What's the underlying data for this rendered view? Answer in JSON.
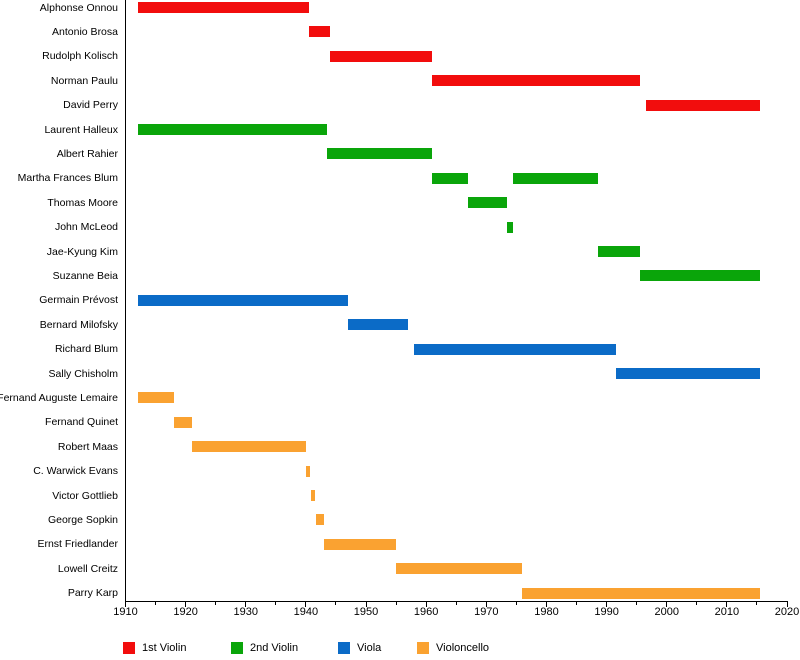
{
  "chart_data": {
    "type": "bar",
    "variant": "timeline-gantt",
    "title": "",
    "xlabel": "",
    "ylabel": "",
    "grid": false,
    "background_color": "#ffffff",
    "axis_color": "#000000",
    "x_axis": {
      "min": 1910,
      "max": 2020,
      "major_tick_step": 10,
      "minor_tick_step": 5,
      "tick_labels": [
        "1910",
        "1920",
        "1930",
        "1940",
        "1950",
        "1960",
        "1970",
        "1980",
        "1990",
        "2000",
        "2010",
        "2020"
      ]
    },
    "legend": {
      "position": "bottom",
      "items": [
        {
          "label": "1st Violin",
          "color": "#f20d0d"
        },
        {
          "label": "2nd Violin",
          "color": "#0aa50a"
        },
        {
          "label": "Viola",
          "color": "#0b6bc7"
        },
        {
          "label": "Violoncello",
          "color": "#faa231"
        }
      ]
    },
    "rows": [
      {
        "name": "Alphonse Onnou",
        "instrument": "1st Violin",
        "bars": [
          [
            1912,
            1940.5
          ]
        ]
      },
      {
        "name": "Antonio Brosa",
        "instrument": "1st Violin",
        "bars": [
          [
            1940.5,
            1944
          ]
        ]
      },
      {
        "name": "Rudolph Kolisch",
        "instrument": "1st Violin",
        "bars": [
          [
            1944,
            1961
          ]
        ]
      },
      {
        "name": "Norman Paulu",
        "instrument": "1st Violin",
        "bars": [
          [
            1961,
            1995.5
          ]
        ]
      },
      {
        "name": "David Perry",
        "instrument": "1st Violin",
        "bars": [
          [
            1996.5,
            2015.5
          ]
        ]
      },
      {
        "name": "Laurent Halleux",
        "instrument": "2nd Violin",
        "bars": [
          [
            1912,
            1943.5
          ]
        ]
      },
      {
        "name": "Albert Rahier",
        "instrument": "2nd Violin",
        "bars": [
          [
            1943.5,
            1961
          ]
        ]
      },
      {
        "name": "Martha Frances Blum",
        "instrument": "2nd Violin",
        "bars": [
          [
            1961,
            1967
          ],
          [
            1974.5,
            1988.5
          ]
        ]
      },
      {
        "name": "Thomas Moore",
        "instrument": "2nd Violin",
        "bars": [
          [
            1967,
            1973.5
          ]
        ]
      },
      {
        "name": "John McLeod",
        "instrument": "2nd Violin",
        "bars": [
          [
            1973.5,
            1974.5
          ]
        ]
      },
      {
        "name": "Jae-Kyung Kim",
        "instrument": "2nd Violin",
        "bars": [
          [
            1988.5,
            1995.5
          ]
        ]
      },
      {
        "name": "Suzanne Beia",
        "instrument": "2nd Violin",
        "bars": [
          [
            1995.5,
            2015.5
          ]
        ]
      },
      {
        "name": "Germain Prévost",
        "instrument": "Viola",
        "bars": [
          [
            1912,
            1947
          ]
        ]
      },
      {
        "name": "Bernard Milofsky",
        "instrument": "Viola",
        "bars": [
          [
            1947,
            1957
          ]
        ]
      },
      {
        "name": "Richard Blum",
        "instrument": "Viola",
        "bars": [
          [
            1958,
            1991.5
          ]
        ]
      },
      {
        "name": "Sally Chisholm",
        "instrument": "Viola",
        "bars": [
          [
            1991.5,
            2015.5
          ]
        ]
      },
      {
        "name": "Fernand Auguste Lemaire",
        "instrument": "Violoncello",
        "bars": [
          [
            1912,
            1918
          ]
        ]
      },
      {
        "name": "Fernand Quinet",
        "instrument": "Violoncello",
        "bars": [
          [
            1918,
            1921
          ]
        ]
      },
      {
        "name": "Robert Maas",
        "instrument": "Violoncello",
        "bars": [
          [
            1921,
            1940
          ]
        ]
      },
      {
        "name": "C. Warwick Evans",
        "instrument": "Violoncello",
        "bars": [
          [
            1940,
            1940.7
          ]
        ]
      },
      {
        "name": "Victor Gottlieb",
        "instrument": "Violoncello",
        "bars": [
          [
            1940.8,
            1941.5
          ]
        ]
      },
      {
        "name": "George Sopkin",
        "instrument": "Violoncello",
        "bars": [
          [
            1941.6,
            1943
          ]
        ]
      },
      {
        "name": "Ernst Friedlander",
        "instrument": "Violoncello",
        "bars": [
          [
            1943,
            1955
          ]
        ]
      },
      {
        "name": "Lowell Creitz",
        "instrument": "Violoncello",
        "bars": [
          [
            1955,
            1976
          ]
        ]
      },
      {
        "name": "Parry Karp",
        "instrument": "Violoncello",
        "bars": [
          [
            1976,
            2015.5
          ]
        ]
      }
    ]
  }
}
